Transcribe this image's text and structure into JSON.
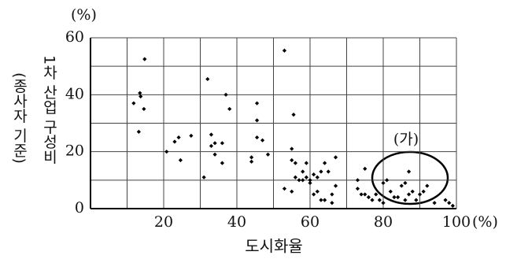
{
  "chart_data": {
    "type": "scatter",
    "y_unit": "(%)",
    "x_unit": "(%)",
    "ylabel": [
      "1차 산업 구성비",
      "(종사자 기준)"
    ],
    "xlabel": "도시화율",
    "annotation": "(가)",
    "color": "#000000",
    "xlim": [
      0,
      100
    ],
    "xticks": [
      20,
      40,
      60,
      80,
      100
    ],
    "ylim": [
      0,
      60
    ],
    "yticks": [
      0,
      20,
      40,
      60
    ],
    "grid": true,
    "x": [
      14.8,
      13.5,
      13.7,
      11.8,
      14.6,
      13.2,
      20.8,
      23,
      24.1,
      24.6,
      27.5,
      32,
      37,
      38,
      33,
      34,
      36,
      33,
      34,
      36,
      31,
      45.5,
      45.5,
      45.5,
      47,
      44,
      44,
      48.5,
      53,
      55.5,
      55,
      55,
      56,
      53,
      56,
      57,
      58,
      59,
      58,
      59,
      60,
      61,
      60,
      62,
      63,
      61,
      62,
      64,
      65,
      63,
      64,
      66,
      67,
      67,
      55,
      66,
      73,
      73,
      74,
      75,
      75,
      76,
      77,
      78,
      79,
      80,
      80,
      81,
      82,
      83,
      84,
      85,
      86,
      87,
      86,
      87,
      88,
      89,
      90,
      91,
      92,
      94,
      97,
      98,
      99
    ],
    "values": [
      52.5,
      40.6,
      39.4,
      37,
      35,
      27,
      20,
      23.5,
      25,
      17,
      25.6,
      45.5,
      40,
      35,
      26,
      23,
      23,
      22,
      19,
      16,
      11,
      37,
      31,
      25,
      24,
      18,
      16.5,
      19,
      55.5,
      33,
      21,
      17,
      16,
      7,
      11,
      10,
      10,
      11,
      13,
      16,
      9,
      12,
      10,
      11,
      13,
      5,
      6,
      16,
      13,
      3,
      3,
      5,
      8,
      18,
      6,
      2,
      10,
      7,
      5,
      5,
      14,
      4,
      3,
      5,
      3,
      2,
      9,
      10,
      6,
      4,
      4,
      8,
      9,
      13,
      3,
      5,
      6,
      3,
      5,
      6,
      8,
      2,
      3,
      2,
      1
    ]
  }
}
